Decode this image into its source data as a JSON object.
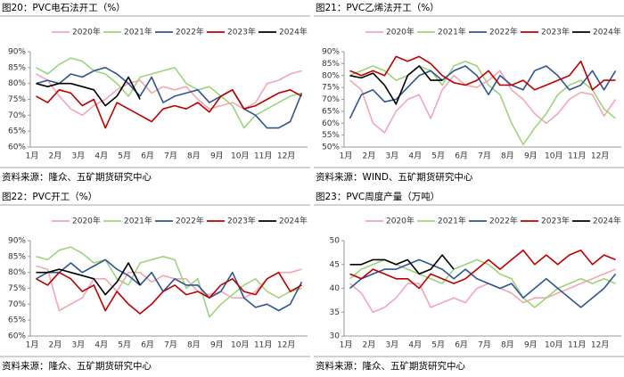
{
  "chart_data": [
    {
      "type": "line",
      "title": "图20：PVC电石法开工（%）",
      "source": "资料来源：隆众、五矿期货研究中心",
      "categories": [
        "1月",
        null,
        "2月",
        null,
        "3月",
        null,
        "4月",
        null,
        "5月",
        null,
        "6月",
        null,
        "7月",
        null,
        "8月",
        null,
        "9月",
        null,
        "10月",
        null,
        "11月",
        null,
        "12月",
        null
      ],
      "ylim": [
        60,
        90
      ],
      "yticks": [
        {
          "value": 60,
          "label": "60%"
        },
        {
          "value": 65,
          "label": "65%"
        },
        {
          "value": 70,
          "label": "70%"
        },
        {
          "value": 75,
          "label": "75%"
        },
        {
          "value": 80,
          "label": "80%"
        },
        {
          "value": 85,
          "label": "85%"
        },
        {
          "value": 90,
          "label": "90%"
        }
      ],
      "series": [
        {
          "name": "2020年",
          "color": "#f4a6b4",
          "values": [
            83,
            81,
            76,
            72,
            70,
            73,
            75,
            78,
            80,
            81,
            77,
            79,
            78,
            79,
            75,
            72,
            73,
            74,
            72,
            74,
            80,
            81,
            83,
            84
          ]
        },
        {
          "name": "2021年",
          "color": "#9ed47a",
          "values": [
            85,
            83,
            86,
            88,
            87,
            84,
            83,
            80,
            76,
            82,
            83,
            84,
            85,
            80,
            78,
            79,
            76,
            73,
            66,
            70,
            72,
            74,
            76,
            77
          ]
        },
        {
          "name": "2022年",
          "color": "#2f5597",
          "values": [
            80,
            81,
            80,
            83,
            82,
            84,
            85,
            83,
            80,
            76,
            82,
            74,
            76,
            77,
            78,
            74,
            76,
            78,
            72,
            70,
            66,
            66,
            68,
            77
          ]
        },
        {
          "name": "2023年",
          "color": "#c00000",
          "values": [
            76,
            74,
            78,
            77,
            73,
            75,
            66,
            74,
            72,
            70,
            68,
            72,
            73,
            72,
            74,
            71,
            76,
            78,
            72,
            73,
            75,
            77,
            78,
            76
          ]
        },
        {
          "name": "2024年",
          "color": "#000000",
          "values": [
            80,
            79,
            80,
            80,
            79,
            78,
            73,
            76,
            82,
            75,
            null,
            null,
            null,
            null,
            null,
            null,
            null,
            null,
            null,
            null,
            null,
            null,
            null,
            null
          ]
        }
      ]
    },
    {
      "type": "line",
      "title": "图21：PVC乙烯法开工（%）",
      "source": "资料来源：WIND、五矿期货研究中心",
      "categories": [
        "1月",
        null,
        "2月",
        null,
        "3月",
        null,
        "4月",
        null,
        "5月",
        null,
        "6月",
        null,
        "7月",
        null,
        "8月",
        null,
        "9月",
        null,
        "10月",
        null,
        "11月",
        null,
        "12月",
        null
      ],
      "ylim": [
        50,
        90
      ],
      "yticks": [
        {
          "value": 50,
          "label": "50%"
        },
        {
          "value": 55,
          "label": "55%"
        },
        {
          "value": 60,
          "label": "60%"
        },
        {
          "value": 65,
          "label": "65%"
        },
        {
          "value": 70,
          "label": "70%"
        },
        {
          "value": 75,
          "label": "75%"
        },
        {
          "value": 80,
          "label": "80%"
        },
        {
          "value": 85,
          "label": "85%"
        },
        {
          "value": 90,
          "label": "90%"
        }
      ],
      "series": [
        {
          "name": "2020年",
          "color": "#f4a6b4",
          "values": [
            78,
            74,
            60,
            56,
            65,
            70,
            72,
            62,
            74,
            80,
            76,
            75,
            78,
            82,
            74,
            70,
            64,
            60,
            64,
            70,
            73,
            72,
            63,
            70
          ]
        },
        {
          "name": "2021年",
          "color": "#9ed47a",
          "values": [
            80,
            82,
            84,
            82,
            78,
            80,
            84,
            82,
            76,
            84,
            86,
            84,
            76,
            72,
            60,
            51,
            58,
            64,
            72,
            76,
            78,
            74,
            66,
            62
          ]
        },
        {
          "name": "2022年",
          "color": "#2f5597",
          "values": [
            62,
            72,
            74,
            69,
            70,
            75,
            80,
            82,
            78,
            82,
            84,
            80,
            72,
            80,
            76,
            74,
            82,
            84,
            80,
            74,
            76,
            82,
            74,
            82
          ]
        },
        {
          "name": "2023年",
          "color": "#c00000",
          "values": [
            82,
            80,
            82,
            80,
            88,
            86,
            88,
            85,
            80,
            77,
            76,
            78,
            82,
            76,
            76,
            78,
            74,
            76,
            78,
            80,
            86,
            74,
            78,
            78
          ]
        },
        {
          "name": "2024年",
          "color": "#000000",
          "values": [
            80,
            79,
            81,
            76,
            68,
            80,
            84,
            78,
            78,
            null,
            null,
            null,
            null,
            null,
            null,
            null,
            null,
            null,
            null,
            null,
            null,
            null,
            null,
            null
          ]
        }
      ]
    },
    {
      "type": "line",
      "title": "图22：PVC开工（%）",
      "source": "资料来源：隆众、五矿期货研究中心",
      "categories": [
        "1月",
        null,
        "2月",
        null,
        "3月",
        null,
        "4月",
        null,
        "5月",
        null,
        "6月",
        null,
        "7月",
        null,
        "8月",
        null,
        "9月",
        null,
        "10月",
        null,
        "11月",
        null,
        "12月",
        null
      ],
      "ylim": [
        60,
        90
      ],
      "yticks": [
        {
          "value": 60,
          "label": "60%"
        },
        {
          "value": 65,
          "label": "65%"
        },
        {
          "value": 70,
          "label": "70%"
        },
        {
          "value": 75,
          "label": "75%"
        },
        {
          "value": 80,
          "label": "80%"
        },
        {
          "value": 85,
          "label": "85%"
        },
        {
          "value": 90,
          "label": "90%"
        }
      ],
      "series": [
        {
          "name": "2020年",
          "color": "#f4a6b4",
          "values": [
            82,
            81,
            68,
            70,
            72,
            78,
            78,
            74,
            80,
            80,
            77,
            79,
            78,
            78,
            74,
            73,
            74,
            72,
            72,
            74,
            78,
            80,
            80,
            81
          ]
        },
        {
          "name": "2021年",
          "color": "#9ed47a",
          "values": [
            85,
            84,
            87,
            88,
            86,
            83,
            84,
            78,
            76,
            83,
            84,
            85,
            84,
            75,
            78,
            66,
            70,
            73,
            76,
            78,
            74,
            72,
            74,
            75
          ]
        },
        {
          "name": "2022年",
          "color": "#2f5597",
          "values": [
            78,
            80,
            80,
            83,
            80,
            82,
            84,
            81,
            79,
            76,
            80,
            74,
            78,
            76,
            76,
            72,
            74,
            80,
            72,
            69,
            70,
            68,
            70,
            77
          ]
        },
        {
          "name": "2023年",
          "color": "#c00000",
          "values": [
            78,
            76,
            80,
            78,
            74,
            76,
            68,
            74,
            70,
            67,
            70,
            74,
            76,
            73,
            74,
            72,
            76,
            78,
            74,
            73,
            78,
            80,
            74,
            76
          ]
        },
        {
          "name": "2024年",
          "color": "#000000",
          "values": [
            80,
            80,
            81,
            80,
            79,
            78,
            73,
            77,
            83,
            76,
            null,
            null,
            null,
            null,
            null,
            null,
            null,
            null,
            null,
            null,
            null,
            null,
            null,
            null
          ]
        }
      ]
    },
    {
      "type": "line",
      "title": "图23：PVC周度产量（万吨）",
      "source": "资料来源：隆众、五矿期货研究中心",
      "categories": [
        "1月",
        null,
        "2月",
        null,
        "3月",
        null,
        "4月",
        null,
        "5月",
        null,
        "6月",
        null,
        "7月",
        null,
        "8月",
        null,
        "9月",
        null,
        "10月",
        null,
        "11月",
        null,
        "12月",
        null
      ],
      "ylim": [
        30,
        50
      ],
      "yticks": [
        30,
        35,
        40,
        45,
        50
      ],
      "series": [
        {
          "name": "2020年",
          "color": "#f4a6b4",
          "values": [
            41,
            39,
            35,
            36,
            38,
            41,
            41,
            36,
            37,
            38,
            37,
            40,
            41,
            40,
            39,
            37,
            38,
            38,
            39,
            40,
            41,
            42,
            43,
            44
          ]
        },
        {
          "name": "2021年",
          "color": "#9ed47a",
          "values": [
            42,
            44,
            45,
            46,
            45,
            44,
            43,
            42,
            41,
            44,
            45,
            46,
            45,
            43,
            42,
            38,
            36,
            38,
            40,
            41,
            42,
            41,
            42,
            41
          ]
        },
        {
          "name": "2022年",
          "color": "#2f5597",
          "values": [
            40,
            42,
            43,
            44,
            44,
            45,
            46,
            45,
            44,
            42,
            44,
            42,
            41,
            40,
            41,
            38,
            40,
            42,
            40,
            38,
            36,
            38,
            40,
            43
          ]
        },
        {
          "name": "2023年",
          "color": "#c00000",
          "values": [
            43,
            42,
            44,
            43,
            42,
            42,
            40,
            43,
            42,
            41,
            42,
            44,
            46,
            44,
            46,
            48,
            45,
            47,
            45,
            47,
            48,
            45,
            47,
            46
          ]
        },
        {
          "name": "2024年",
          "color": "#000000",
          "values": [
            45,
            45,
            46,
            46,
            45,
            46,
            43,
            44,
            47,
            44,
            null,
            null,
            null,
            null,
            null,
            null,
            null,
            null,
            null,
            null,
            null,
            null,
            null,
            null
          ]
        }
      ]
    }
  ]
}
